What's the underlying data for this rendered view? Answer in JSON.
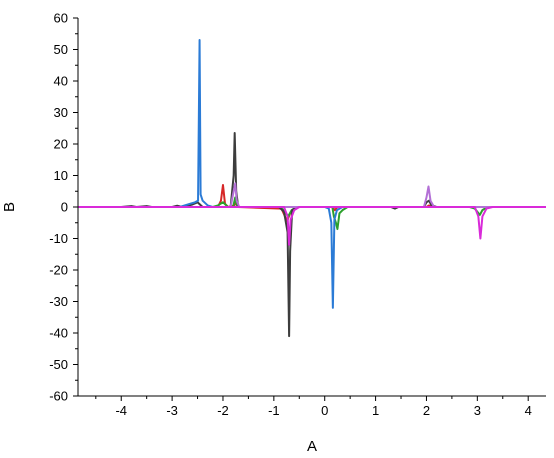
{
  "chart_data": {
    "type": "line",
    "title": "",
    "xlabel": "A",
    "ylabel": "B",
    "xlim": [
      -4.85,
      4.35
    ],
    "ylim": [
      -60,
      60
    ],
    "xticks": [
      -4,
      -3,
      -2,
      -1,
      0,
      1,
      2,
      3,
      4
    ],
    "yticks": [
      -60,
      -50,
      -40,
      -30,
      -20,
      -10,
      0,
      10,
      20,
      30,
      40,
      50,
      60
    ],
    "grid": false,
    "legend": "none",
    "series": [
      {
        "color": "#d62728",
        "points": [
          [
            -4.85,
            0
          ],
          [
            -2.1,
            0
          ],
          [
            -2.04,
            2
          ],
          [
            -2.0,
            7
          ],
          [
            -1.96,
            1
          ],
          [
            -1.9,
            0
          ],
          [
            -1.78,
            0.5
          ],
          [
            -1.74,
            1.5
          ],
          [
            -1.7,
            0
          ],
          [
            -0.85,
            -0.5
          ],
          [
            -0.78,
            -3
          ],
          [
            -0.74,
            -4.5
          ],
          [
            -0.68,
            -2
          ],
          [
            -0.6,
            -0.5
          ],
          [
            -0.5,
            0
          ],
          [
            0.15,
            0
          ],
          [
            0.2,
            -1
          ],
          [
            0.25,
            0
          ],
          [
            2.0,
            0
          ],
          [
            2.05,
            0.5
          ],
          [
            2.1,
            0
          ],
          [
            4.35,
            0
          ]
        ]
      },
      {
        "color": "#2ca02c",
        "points": [
          [
            -4.85,
            0
          ],
          [
            -2.2,
            0
          ],
          [
            -2.1,
            0.5
          ],
          [
            -2.0,
            1.5
          ],
          [
            -1.9,
            0
          ],
          [
            -1.8,
            0
          ],
          [
            -1.76,
            3
          ],
          [
            -1.72,
            0
          ],
          [
            -0.9,
            0
          ],
          [
            -0.8,
            -1
          ],
          [
            -0.72,
            -3
          ],
          [
            -0.65,
            -1
          ],
          [
            -0.55,
            0
          ],
          [
            0.15,
            0
          ],
          [
            0.18,
            -3
          ],
          [
            0.22,
            -5
          ],
          [
            0.25,
            -7
          ],
          [
            0.29,
            -2
          ],
          [
            0.35,
            -1
          ],
          [
            0.45,
            0
          ],
          [
            2.85,
            0
          ],
          [
            2.95,
            -0.5
          ],
          [
            3.0,
            -1.5
          ],
          [
            3.05,
            -2.5
          ],
          [
            3.1,
            -1
          ],
          [
            3.2,
            0
          ],
          [
            4.35,
            0
          ]
        ]
      },
      {
        "color": "#3d3d3d",
        "points": [
          [
            -4.85,
            0
          ],
          [
            -4.0,
            0
          ],
          [
            -3.8,
            0.3
          ],
          [
            -3.7,
            0
          ],
          [
            -3.5,
            0.3
          ],
          [
            -3.4,
            0
          ],
          [
            -3.0,
            0
          ],
          [
            -2.9,
            0.4
          ],
          [
            -2.8,
            0
          ],
          [
            -2.6,
            0.8
          ],
          [
            -2.5,
            1.5
          ],
          [
            -2.4,
            0
          ],
          [
            -1.85,
            0
          ],
          [
            -1.79,
            10
          ],
          [
            -1.77,
            23.5
          ],
          [
            -1.74,
            5
          ],
          [
            -1.7,
            0
          ],
          [
            -0.9,
            0
          ],
          [
            -0.8,
            -1.5
          ],
          [
            -0.73,
            -8
          ],
          [
            -0.7,
            -41
          ],
          [
            -0.68,
            -14
          ],
          [
            -0.64,
            -1
          ],
          [
            -0.55,
            0
          ],
          [
            1.3,
            0
          ],
          [
            1.38,
            -0.5
          ],
          [
            1.45,
            0
          ],
          [
            1.95,
            0
          ],
          [
            2.0,
            1.5
          ],
          [
            2.05,
            2
          ],
          [
            2.1,
            0.5
          ],
          [
            2.2,
            0
          ],
          [
            4.35,
            0
          ]
        ]
      },
      {
        "color": "#2b7bd6",
        "points": [
          [
            -4.85,
            0
          ],
          [
            -2.85,
            0
          ],
          [
            -2.65,
            1
          ],
          [
            -2.55,
            1.5
          ],
          [
            -2.49,
            2
          ],
          [
            -2.46,
            53
          ],
          [
            -2.44,
            4
          ],
          [
            -2.4,
            2
          ],
          [
            -2.3,
            0.5
          ],
          [
            -2.2,
            0
          ],
          [
            0.0,
            0
          ],
          [
            0.08,
            -0.5
          ],
          [
            0.13,
            -5
          ],
          [
            0.16,
            -32
          ],
          [
            0.19,
            -4
          ],
          [
            0.24,
            -1
          ],
          [
            0.35,
            0
          ],
          [
            4.35,
            0
          ]
        ]
      },
      {
        "color": "#b370d6",
        "points": [
          [
            -4.85,
            0
          ],
          [
            -1.85,
            0
          ],
          [
            -1.79,
            5
          ],
          [
            -1.76,
            7.5
          ],
          [
            -1.73,
            2
          ],
          [
            -1.68,
            0
          ],
          [
            1.95,
            0
          ],
          [
            2.0,
            3
          ],
          [
            2.04,
            6.5
          ],
          [
            2.08,
            2
          ],
          [
            2.15,
            0
          ],
          [
            4.35,
            0
          ]
        ]
      },
      {
        "color": "#d92ad9",
        "points": [
          [
            -4.85,
            0
          ],
          [
            -0.8,
            0
          ],
          [
            -0.73,
            -3
          ],
          [
            -0.7,
            -12
          ],
          [
            -0.67,
            -4
          ],
          [
            -0.6,
            -1
          ],
          [
            -0.5,
            0
          ],
          [
            2.95,
            0
          ],
          [
            3.02,
            -3
          ],
          [
            3.06,
            -10
          ],
          [
            3.1,
            -3
          ],
          [
            3.18,
            -0.5
          ],
          [
            3.3,
            0
          ],
          [
            4.35,
            0
          ]
        ]
      }
    ]
  }
}
